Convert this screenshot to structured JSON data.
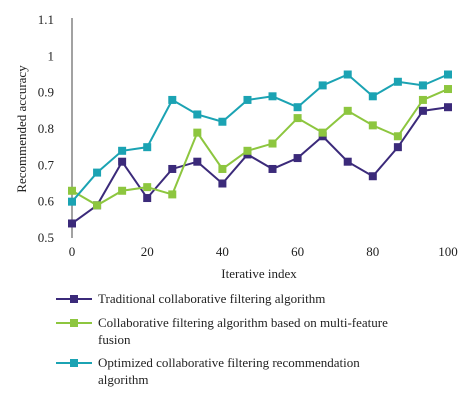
{
  "chart_data": {
    "type": "line",
    "xlabel": "Iterative index",
    "ylabel": "Recommended accuracy",
    "xlim": [
      0,
      100
    ],
    "ylim": [
      0.5,
      1.1
    ],
    "xticks": [
      0,
      20,
      40,
      60,
      80,
      100
    ],
    "yticks": [
      0.5,
      0.6,
      0.7,
      0.8,
      0.9,
      1,
      1.1
    ],
    "x": [
      0,
      6.67,
      13.33,
      20,
      26.67,
      33.33,
      40,
      46.67,
      53.33,
      60,
      66.67,
      73.33,
      80,
      86.67,
      93.33,
      100
    ],
    "grid": false,
    "legend_position": "bottom",
    "series": [
      {
        "name": "Traditional collaborative filtering algorithm",
        "color": "#3b2a7a",
        "marker": "square",
        "values": [
          0.54,
          0.59,
          0.71,
          0.61,
          0.69,
          0.71,
          0.65,
          0.73,
          0.69,
          0.72,
          0.78,
          0.71,
          0.67,
          0.75,
          0.85,
          0.86
        ]
      },
      {
        "name": "Collaborative filtering algorithm based on multi-feature fusion",
        "color": "#8dc63f",
        "marker": "square",
        "values": [
          0.63,
          0.59,
          0.63,
          0.64,
          0.62,
          0.79,
          0.69,
          0.74,
          0.76,
          0.83,
          0.79,
          0.85,
          0.81,
          0.78,
          0.88,
          0.91
        ]
      },
      {
        "name": "Optimized collaborative filtering recommendation algorithm",
        "color": "#1ba3b3",
        "marker": "square",
        "values": [
          0.6,
          0.68,
          0.74,
          0.75,
          0.88,
          0.84,
          0.82,
          0.88,
          0.89,
          0.86,
          0.92,
          0.95,
          0.89,
          0.93,
          0.92,
          0.95
        ]
      }
    ]
  }
}
